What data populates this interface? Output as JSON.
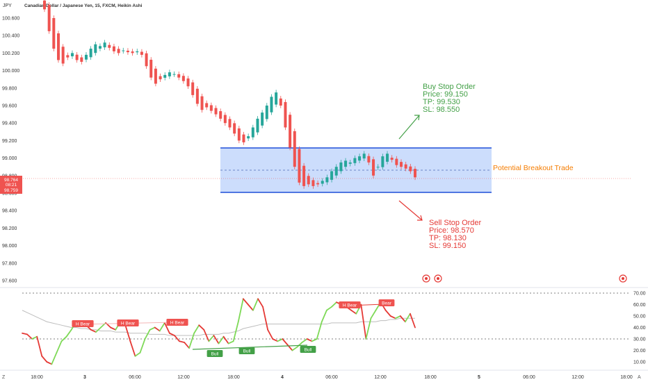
{
  "header": {
    "currency": "JPY",
    "title": "Canadian Dollar / Japanese Yen, 15, FXCM, Heikin Ashi"
  },
  "price_axis": {
    "ticks": [
      "100.600",
      "100.400",
      "100.200",
      "100.000",
      "99.800",
      "99.600",
      "99.400",
      "99.200",
      "99.000",
      "98.800",
      "98.600",
      "98.400",
      "98.200",
      "98.000",
      "97.800",
      "97.600"
    ],
    "current_price": "98.764",
    "countdown": "08:21",
    "prev_price": "98.759"
  },
  "osc_axis": {
    "ticks": [
      "70.00",
      "60.00",
      "50.00",
      "40.00",
      "30.00",
      "20.00",
      "10.00"
    ]
  },
  "time_axis": {
    "labels": [
      "18:00",
      "3",
      "06:00",
      "12:00",
      "18:00",
      "4",
      "06:00",
      "12:00",
      "18:00",
      "5",
      "06:00",
      "12:00",
      "18:00"
    ]
  },
  "annotations": {
    "buy": {
      "title": "Buy Stop Order",
      "price": "Price: 99.150",
      "tp": "TP: 99.530",
      "sl": "SL: 98.550"
    },
    "sell": {
      "title": "Sell Stop Order",
      "price": "Price: 98.570",
      "tp": "TP: 98.130",
      "sl": "SL: 99.150"
    },
    "breakout": "Potential Breakout Trade"
  },
  "osc_labels": [
    "H Bear",
    "H Bear",
    "H Bear",
    "Bull",
    "Bull",
    "Bull",
    "H Bear",
    "Bear"
  ],
  "corner_icons": {
    "left": "Z",
    "right": "A"
  },
  "colors": {
    "up": "#26a69a",
    "down": "#ef5350",
    "buy": "#43a047",
    "sell": "#e53935",
    "breakout": "#f57c00",
    "box_fill": "#bbd2fb",
    "box_border": "#1e4fd8",
    "osc_up": "#7ed957",
    "osc_down": "#e53935"
  },
  "chart_data": {
    "type": "candlestick",
    "title": "Canadian Dollar / Japanese Yen, 15, FXCM, Heikin Ashi",
    "ylim": [
      97.55,
      100.75
    ],
    "breakout_box": {
      "high": 99.12,
      "low": 98.6,
      "mid": 98.86
    },
    "series": [
      {
        "name": "close",
        "values": [
          100.7,
          100.45,
          100.25,
          100.12,
          100.08,
          100.15,
          100.2,
          100.12,
          100.1,
          100.18,
          100.25,
          100.3,
          100.28,
          100.32,
          100.26,
          100.22,
          100.2,
          100.23,
          100.21,
          100.2,
          100.22,
          100.18,
          100.05,
          99.92,
          99.85,
          99.9,
          99.95,
          99.98,
          99.96,
          99.92,
          99.88,
          99.82,
          99.72,
          99.62,
          99.55,
          99.58,
          99.54,
          99.5,
          99.45,
          99.4,
          99.35,
          99.28,
          99.2,
          99.18,
          99.25,
          99.35,
          99.45,
          99.52,
          99.6,
          99.7,
          99.75,
          99.6,
          99.35,
          99.12,
          98.9,
          98.72,
          98.68,
          98.7,
          98.68,
          98.7,
          98.74,
          98.78,
          98.85,
          98.9,
          98.95,
          98.97,
          98.95,
          99.0,
          99.02,
          99.05,
          98.95,
          98.8,
          98.9,
          99.02,
          99.05,
          98.98,
          98.92,
          98.9,
          98.88,
          98.85,
          98.78
        ]
      }
    ],
    "oscillator": {
      "ylim": [
        2,
        76
      ],
      "levels": [
        70,
        30
      ],
      "values": [
        35,
        34,
        30,
        32,
        15,
        10,
        8,
        18,
        28,
        32,
        38,
        45,
        44,
        42,
        38,
        36,
        40,
        44,
        40,
        38,
        45,
        42,
        28,
        15,
        18,
        30,
        38,
        40,
        37,
        44,
        35,
        33,
        28,
        27,
        22,
        35,
        42,
        38,
        28,
        33,
        26,
        32,
        26,
        28,
        45,
        65,
        60,
        55,
        65,
        58,
        38,
        30,
        28,
        30,
        25,
        20,
        23,
        27,
        30,
        28,
        30,
        45,
        55,
        58,
        62,
        60,
        58,
        55,
        52,
        60,
        30,
        48,
        55,
        62,
        55,
        50,
        48,
        50,
        45,
        52,
        40
      ],
      "ma": [
        55,
        53,
        51,
        49,
        47,
        45,
        44,
        43,
        42,
        41,
        40,
        40,
        39,
        39,
        38,
        38,
        37,
        37,
        37,
        36,
        36,
        36,
        35,
        35,
        35,
        35,
        34,
        34,
        34,
        34,
        33,
        33,
        33,
        33,
        33,
        33,
        33,
        34,
        34,
        34,
        34,
        35,
        35,
        36,
        37,
        39,
        40,
        41,
        42,
        43,
        43,
        43,
        43,
        43,
        43,
        43,
        43,
        43,
        43,
        43,
        43,
        43,
        43,
        44,
        44,
        44,
        44,
        44,
        44,
        45,
        45,
        45,
        45,
        46,
        46,
        47,
        47,
        48,
        48,
        48,
        48
      ]
    }
  }
}
